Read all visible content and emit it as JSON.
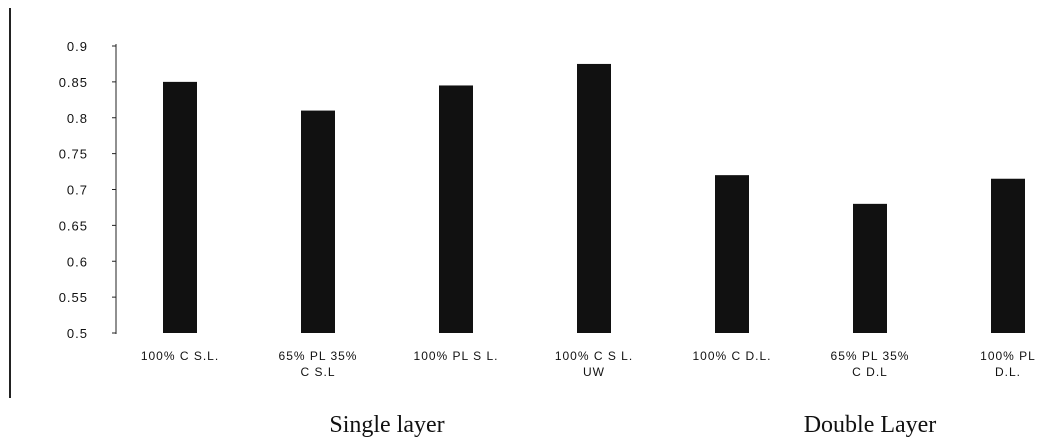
{
  "chart_data": {
    "type": "bar",
    "categories": [
      [
        "100% C  S.L."
      ],
      [
        "65% PL 35%",
        "C S.L"
      ],
      [
        "100% PL S L."
      ],
      [
        "100% C S  L.",
        "UW"
      ],
      [
        "100% C  D.L."
      ],
      [
        "65% PL 35%",
        "C D.L"
      ],
      [
        "100% PL",
        "D.L."
      ]
    ],
    "values": [
      0.85,
      0.81,
      0.845,
      0.875,
      0.72,
      0.68,
      0.715
    ],
    "ylim": [
      0.5,
      0.9
    ],
    "yticks": [
      "0.5",
      "0.55",
      "0.6",
      "0.65",
      "0.7",
      "0.75",
      "0.8",
      "0.85",
      "0.9"
    ],
    "title": "",
    "xlabel": "",
    "ylabel": "",
    "groups": [
      {
        "label": "Single layer",
        "span": [
          0,
          3
        ]
      },
      {
        "label": "Double Layer",
        "span": [
          4,
          6
        ]
      }
    ],
    "grid": false,
    "legend": "none",
    "bar_color": "#111111"
  }
}
